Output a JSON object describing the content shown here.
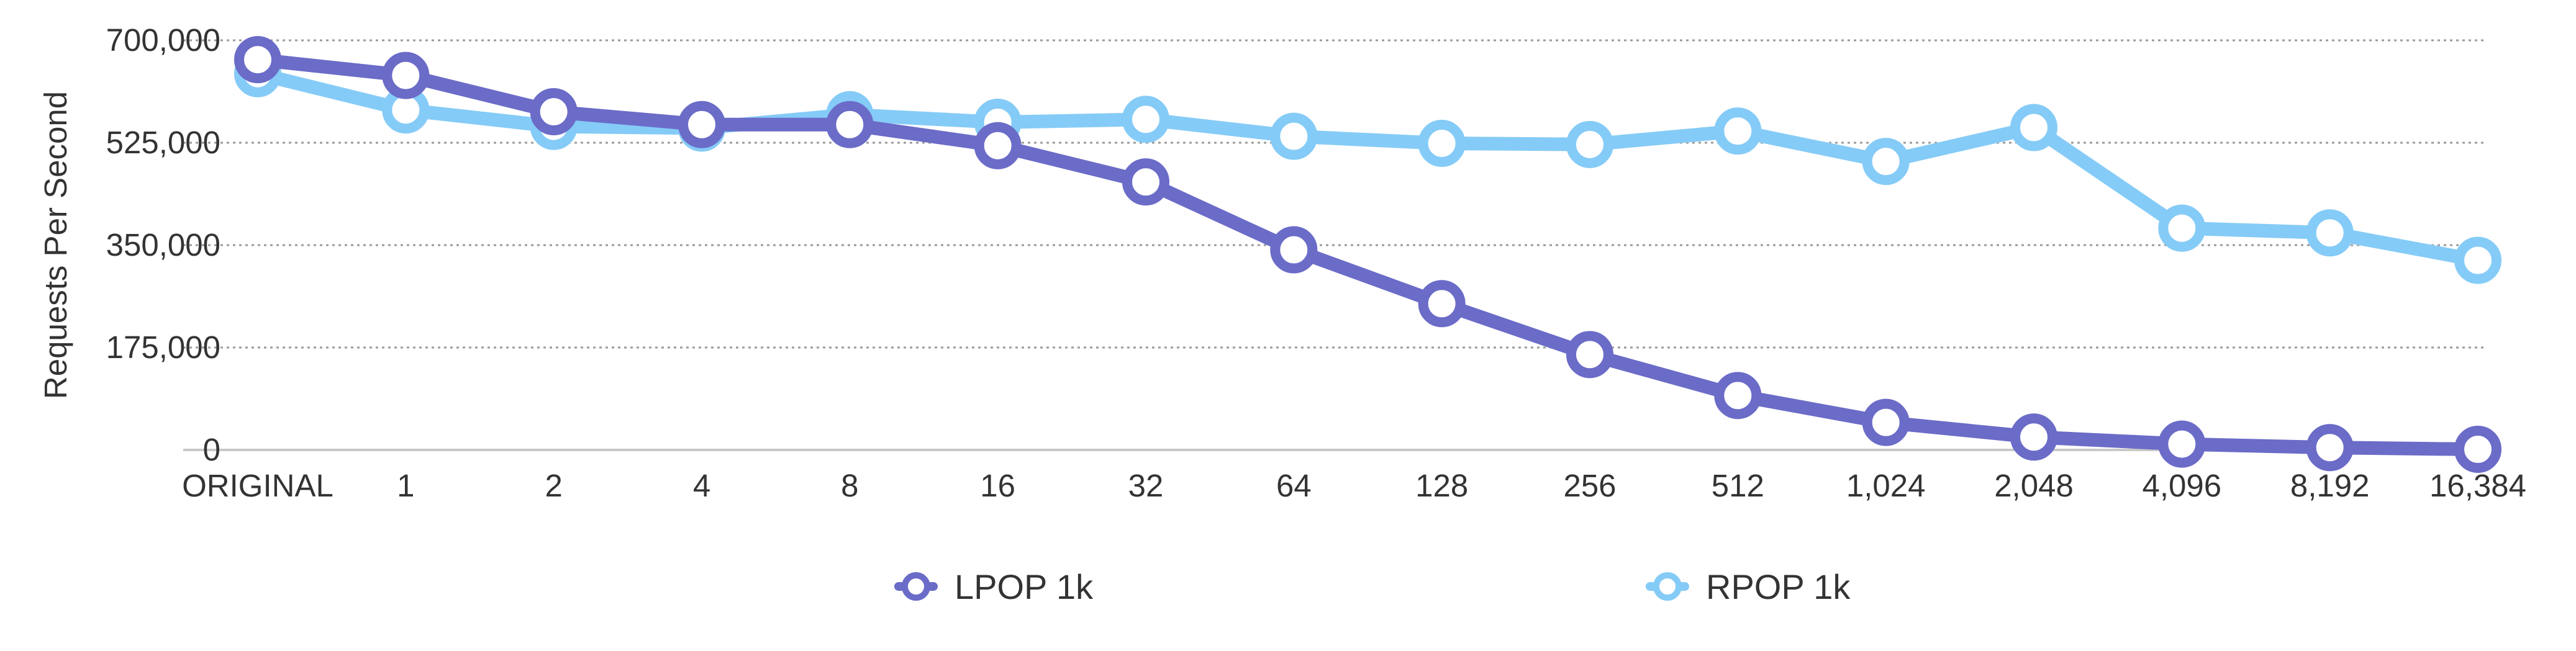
{
  "chart_data": {
    "type": "line",
    "title": "",
    "xlabel": "",
    "ylabel": "Requests Per Second",
    "categories": [
      "ORIGINAL",
      "1",
      "2",
      "4",
      "8",
      "16",
      "32",
      "64",
      "128",
      "256",
      "512",
      "1,024",
      "2,048",
      "4,096",
      "8,192",
      "16,384"
    ],
    "yticks": [
      "0",
      "175,000",
      "350,000",
      "525,000",
      "700,000"
    ],
    "ytick_values": [
      0,
      175000,
      350000,
      525000,
      700000
    ],
    "ylim": [
      0,
      700000
    ],
    "grid": true,
    "legend_position": "bottom",
    "series": [
      {
        "name": "LPOP 1k",
        "color": "#6b6bc8",
        "values": [
          667000,
          640000,
          578000,
          556000,
          556000,
          520000,
          458000,
          342000,
          250000,
          163000,
          93000,
          47000,
          22000,
          10000,
          4000,
          1000
        ]
      },
      {
        "name": "RPOP 1k",
        "color": "#85cbf7",
        "values": [
          643000,
          581000,
          553000,
          550000,
          573000,
          560000,
          565000,
          536000,
          524000,
          522000,
          545000,
          493000,
          551000,
          379000,
          371000,
          324000
        ]
      }
    ]
  }
}
